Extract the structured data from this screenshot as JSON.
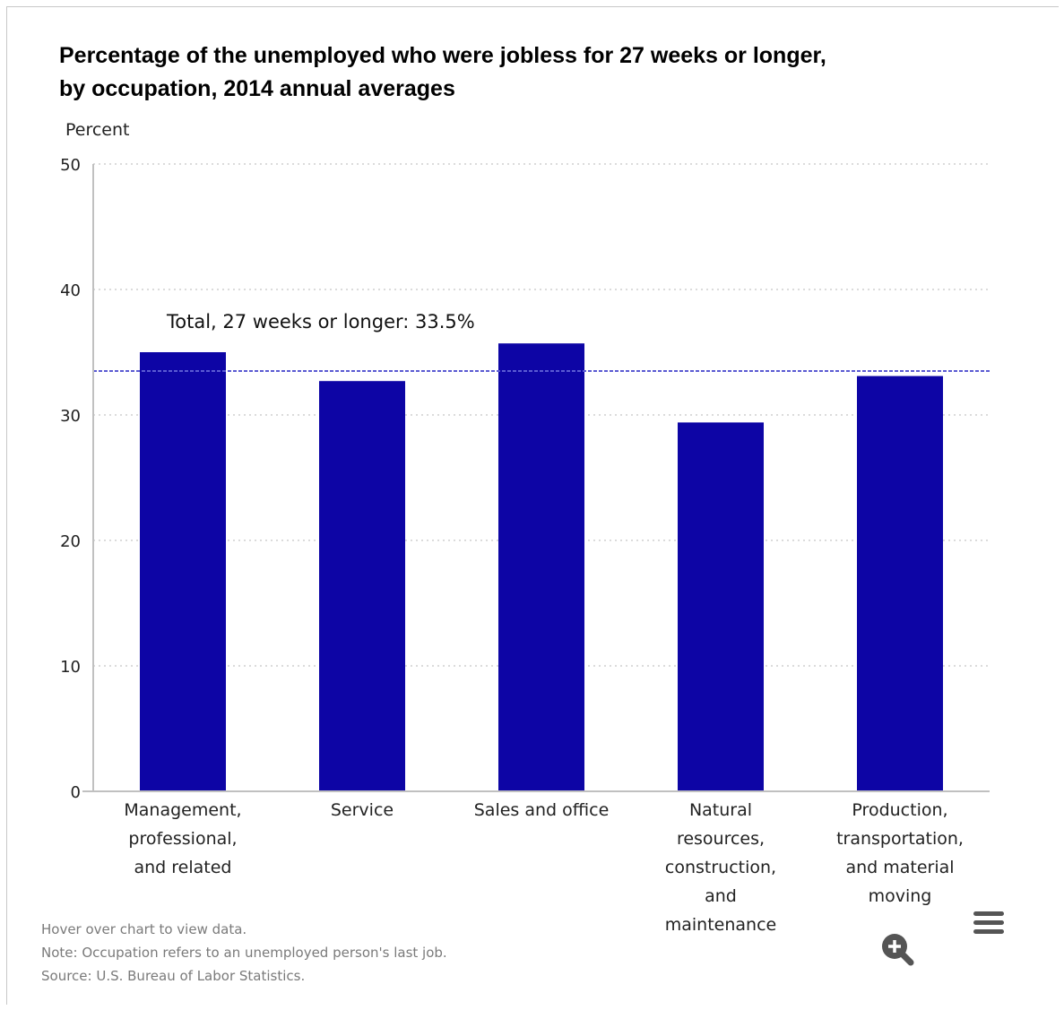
{
  "chart_data": {
    "type": "bar",
    "title": "Percentage of the unemployed who were jobless for 27 weeks or longer, by occupation, 2014 annual averages",
    "title_lines": [
      "Percentage of the unemployed who were jobless for 27 weeks or longer,",
      "by occupation, 2014 annual averages"
    ],
    "ylabel": "Percent",
    "xlabel": "",
    "ylim": [
      0,
      50
    ],
    "yticks": [
      0,
      10,
      20,
      30,
      40,
      50
    ],
    "grid": true,
    "categories": [
      "Management, professional, and related",
      "Service",
      "Sales and office",
      "Natural resources, construction, and maintenance",
      "Production, transportation, and material moving"
    ],
    "category_lines": [
      [
        "Management,",
        "professional,",
        "and related"
      ],
      [
        "Service"
      ],
      [
        "Sales and office"
      ],
      [
        "Natural",
        "resources,",
        "construction,",
        "and",
        "maintenance"
      ],
      [
        "Production,",
        "transportation,",
        "and material",
        "moving"
      ]
    ],
    "values": [
      35.0,
      32.7,
      35.7,
      29.4,
      33.1
    ],
    "bar_color": "#0d05a5",
    "reference_line": {
      "value": 33.5,
      "label": "Total, 27 weeks or longer: 33.5%",
      "color": "#5a5ad2"
    }
  },
  "footnotes": {
    "hover": "Hover over chart to view data.",
    "note": "Note: Occupation refers to an unemployed person's last job.",
    "source": "Source: U.S. Bureau of Labor Statistics."
  },
  "controls": {
    "zoom_icon": "zoom-in-icon",
    "menu_icon": "hamburger-menu-icon"
  }
}
